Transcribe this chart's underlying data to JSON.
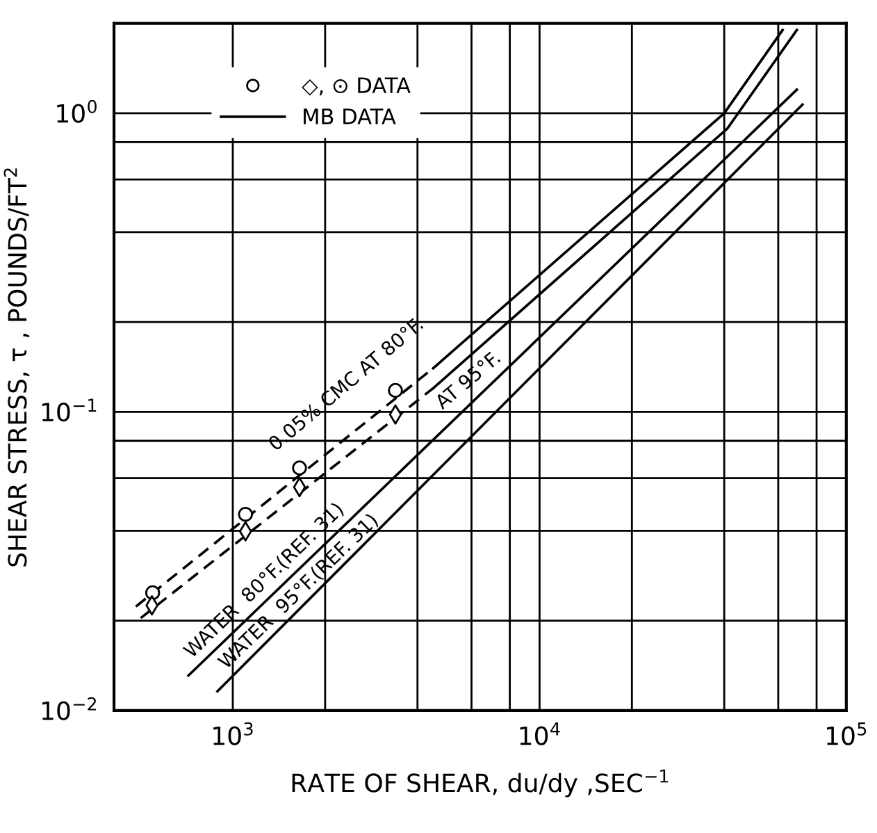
{
  "chart_data": {
    "type": "line",
    "xlabel": "RATE OF SHEAR, du/dy ,SEC$^{−1}$",
    "ylabel": "SHEAR STRESS, τ , POUNDS/FT$^{2}$",
    "log": "xy",
    "xlim": [
      410,
      100000
    ],
    "ylim": [
      0.01,
      2
    ],
    "xticks": [
      {
        "value": 1000,
        "label": "10$^{3}$"
      },
      {
        "value": 2000,
        "label": null
      },
      {
        "value": 4000,
        "label": null
      },
      {
        "value": 6000,
        "label": null
      },
      {
        "value": 8000,
        "label": null
      },
      {
        "value": 10000,
        "label": "10$^{4}$"
      },
      {
        "value": 20000,
        "label": null
      },
      {
        "value": 40000,
        "label": null
      },
      {
        "value": 60000,
        "label": null
      },
      {
        "value": 80000,
        "label": null
      },
      {
        "value": 100000,
        "label": "10$^{5}$"
      }
    ],
    "yticks": [
      {
        "value": 0.01,
        "label": "10$^{−2}$"
      },
      {
        "value": 0.02,
        "label": null
      },
      {
        "value": 0.04,
        "label": null
      },
      {
        "value": 0.06,
        "label": null
      },
      {
        "value": 0.08,
        "label": null
      },
      {
        "value": 0.1,
        "label": "10$^{−1}$"
      },
      {
        "value": 0.2,
        "label": null
      },
      {
        "value": 0.4,
        "label": null
      },
      {
        "value": 0.6,
        "label": null
      },
      {
        "value": 0.8,
        "label": null
      },
      {
        "value": 1,
        "label": "10$^{0}$"
      }
    ],
    "grid": true,
    "legend": "top left",
    "series": [
      {
        "type": "scatter",
        "name": "◇, ⊙ DATA",
        "marker": "circle",
        "color": "#000000",
        "x": [
          548,
          1100,
          1650,
          3390
        ],
        "values": [
          0.0248,
          0.0454,
          0.0649,
          0.118
        ]
      },
      {
        "type": "scatter",
        "marker": "diamond",
        "color": "#000000",
        "x": [
          545,
          1100,
          1650,
          3390
        ],
        "values": [
          0.0225,
          0.0398,
          0.056,
          0.098
        ]
      },
      {
        "line_style": "dashed",
        "color": "#000000",
        "x": [
          483,
          4500
        ],
        "values": [
          0.0223,
          0.14
        ]
      },
      {
        "line_style": "dashed",
        "color": "#000000",
        "x": [
          501,
          4500
        ],
        "values": [
          0.0204,
          0.12
        ]
      },
      {
        "name": "MB DATA",
        "line_style": "solid",
        "color": "#000000",
        "x": [
          4500,
          40000,
          62000
        ],
        "values": [
          0.14,
          1.0,
          1.9
        ]
      },
      {
        "line_style": "solid",
        "color": "#000000",
        "x": [
          4500,
          41000,
          69000
        ],
        "values": [
          0.12,
          0.89,
          1.9
        ]
      },
      {
        "line_style": "solid",
        "color": "#000000",
        "x": [
          717,
          69000
        ],
        "values": [
          0.0131,
          1.2
        ]
      },
      {
        "line_style": "solid",
        "color": "#000000",
        "x": [
          891,
          72000
        ],
        "values": [
          0.0116,
          1.07
        ]
      }
    ],
    "annotations": [
      "0.05% CMC AT 80°F.",
      "AT 95°F.",
      "WATER  80°F.(REF. 31)",
      "WATER  95°F.(REF. 31)"
    ]
  }
}
